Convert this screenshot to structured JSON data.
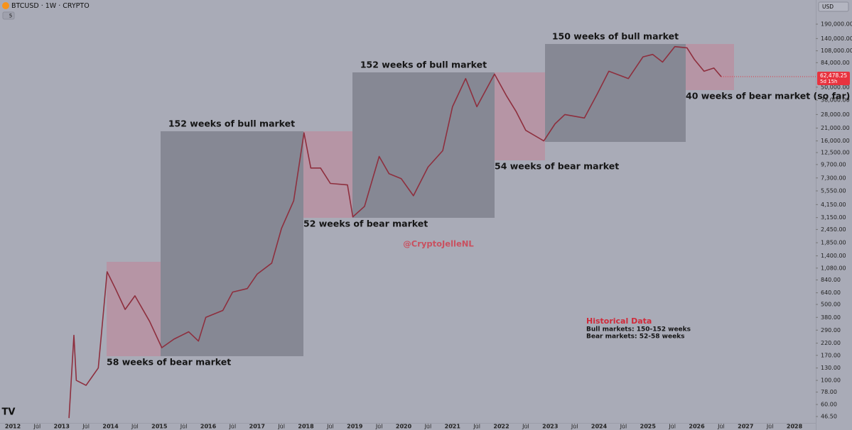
{
  "header": {
    "symbol": "BTCUSD · 1W · CRYPTO",
    "indicators": "5",
    "currency": "USD"
  },
  "chart_data": {
    "type": "line",
    "log_scale": true,
    "color": "#8e2f3e",
    "x": [
      2013.15,
      2013.25,
      2013.3,
      2013.5,
      2013.75,
      2013.85,
      2013.93,
      2014.1,
      2014.3,
      2014.5,
      2014.8,
      2015.05,
      2015.3,
      2015.6,
      2015.8,
      2015.95,
      2016.3,
      2016.5,
      2016.8,
      2017.0,
      2017.3,
      2017.5,
      2017.75,
      2017.96,
      2018.1,
      2018.3,
      2018.5,
      2018.85,
      2018.96,
      2019.2,
      2019.5,
      2019.7,
      2019.95,
      2020.2,
      2020.5,
      2020.8,
      2021.0,
      2021.27,
      2021.5,
      2021.86,
      2022.1,
      2022.3,
      2022.5,
      2022.87,
      2023.1,
      2023.3,
      2023.7,
      2023.96,
      2024.2,
      2024.6,
      2024.9,
      2025.1,
      2025.3,
      2025.55,
      2025.8,
      2025.95,
      2026.15,
      2026.35,
      2026.5
    ],
    "values": [
      45,
      260,
      100,
      90,
      130,
      400,
      1000,
      700,
      450,
      600,
      350,
      200,
      240,
      280,
      230,
      380,
      440,
      650,
      700,
      950,
      1200,
      2500,
      4500,
      19000,
      9000,
      9000,
      6500,
      6300,
      3200,
      4000,
      11500,
      8000,
      7200,
      5000,
      9200,
      13000,
      33000,
      60000,
      33000,
      66000,
      42000,
      30000,
      20000,
      16000,
      23000,
      28000,
      26000,
      43000,
      70000,
      60000,
      95000,
      100000,
      85000,
      118000,
      115000,
      90000,
      70000,
      75000,
      62478.25
    ],
    "last_price": {
      "value": 62478.25,
      "label": "62,478.25",
      "countdown": "5d 15h"
    },
    "xlim": [
      2011.738,
      2028.436
    ],
    "xticks": [
      2012,
      {
        "value": 2012.5,
        "label": "Jul"
      },
      2013,
      {
        "value": 2013.5,
        "label": "Jul"
      },
      2014,
      {
        "value": 2014.5,
        "label": "Jul"
      },
      2015,
      {
        "value": 2015.5,
        "label": "Jul"
      },
      2016,
      {
        "value": 2016.5,
        "label": "Jul"
      },
      2017,
      {
        "value": 2017.5,
        "label": "Jul"
      },
      2018,
      {
        "value": 2018.5,
        "label": "Jul"
      },
      2019,
      {
        "value": 2019.5,
        "label": "Jul"
      },
      2020,
      {
        "value": 2020.5,
        "label": "Jul"
      },
      2021,
      {
        "value": 2021.5,
        "label": "Jul"
      },
      2022,
      {
        "value": 2022.5,
        "label": "Jul"
      },
      2023,
      {
        "value": 2023.5,
        "label": "Jul"
      },
      2024,
      {
        "value": 2024.5,
        "label": "Jul"
      },
      2025,
      {
        "value": 2025.5,
        "label": "Jul"
      },
      2026,
      {
        "value": 2026.5,
        "label": "Jul"
      },
      2027,
      {
        "value": 2027.5,
        "label": "Jul"
      },
      2028
    ],
    "ylim": [
      40,
      317000
    ],
    "yticks": [
      {
        "value": 190000,
        "label": "190,000.00"
      },
      {
        "value": 140000,
        "label": "140,000.00"
      },
      {
        "value": 108000,
        "label": "108,000.00"
      },
      {
        "value": 84000,
        "label": "84,000.00"
      },
      {
        "value": 50000,
        "label": "50,000.00"
      },
      {
        "value": 38000,
        "label": "38,000.00"
      },
      {
        "value": 28000,
        "label": "28,000.00"
      },
      {
        "value": 21000,
        "label": "21,000.00"
      },
      {
        "value": 16000,
        "label": "16,000.00"
      },
      {
        "value": 12500,
        "label": "12,500.00"
      },
      {
        "value": 9700,
        "label": "9,700.00"
      },
      {
        "value": 7300,
        "label": "7,300.00"
      },
      {
        "value": 5550,
        "label": "5,550.00"
      },
      {
        "value": 4150,
        "label": "4,150.00"
      },
      {
        "value": 3150,
        "label": "3,150.00"
      },
      {
        "value": 2450,
        "label": "2,450.00"
      },
      {
        "value": 1850,
        "label": "1,850.00"
      },
      {
        "value": 1400,
        "label": "1,400.00"
      },
      {
        "value": 1080,
        "label": "1,080.00"
      },
      {
        "value": 840,
        "label": "840.00"
      },
      {
        "value": 640,
        "label": "640.00"
      },
      {
        "value": 500,
        "label": "500.00"
      },
      {
        "value": 380,
        "label": "380.00"
      },
      {
        "value": 290,
        "label": "290.00"
      },
      {
        "value": 220,
        "label": "220.00"
      },
      {
        "value": 170,
        "label": "170.00"
      },
      {
        "value": 130,
        "label": "130.00"
      },
      {
        "value": 100,
        "label": "100.00"
      },
      {
        "value": 78,
        "label": "78.00"
      },
      {
        "value": 60,
        "label": "60.00"
      },
      {
        "value": 46.5,
        "label": "46.50"
      }
    ],
    "annotations": [
      "58 weeks of bear market",
      "152 weeks of bull market",
      "52 weeks of bear market",
      "152 weeks of bull market",
      "54 weeks of bear market",
      "150 weeks of bull market",
      "40 weeks of bear market (so far)"
    ],
    "watermark": "@CryptoJelleNL",
    "notes": {
      "title": "Historical Data",
      "lines": [
        "Bull markets: 150-152 weeks",
        "Bear markets: 52-58 weeks"
      ]
    }
  }
}
